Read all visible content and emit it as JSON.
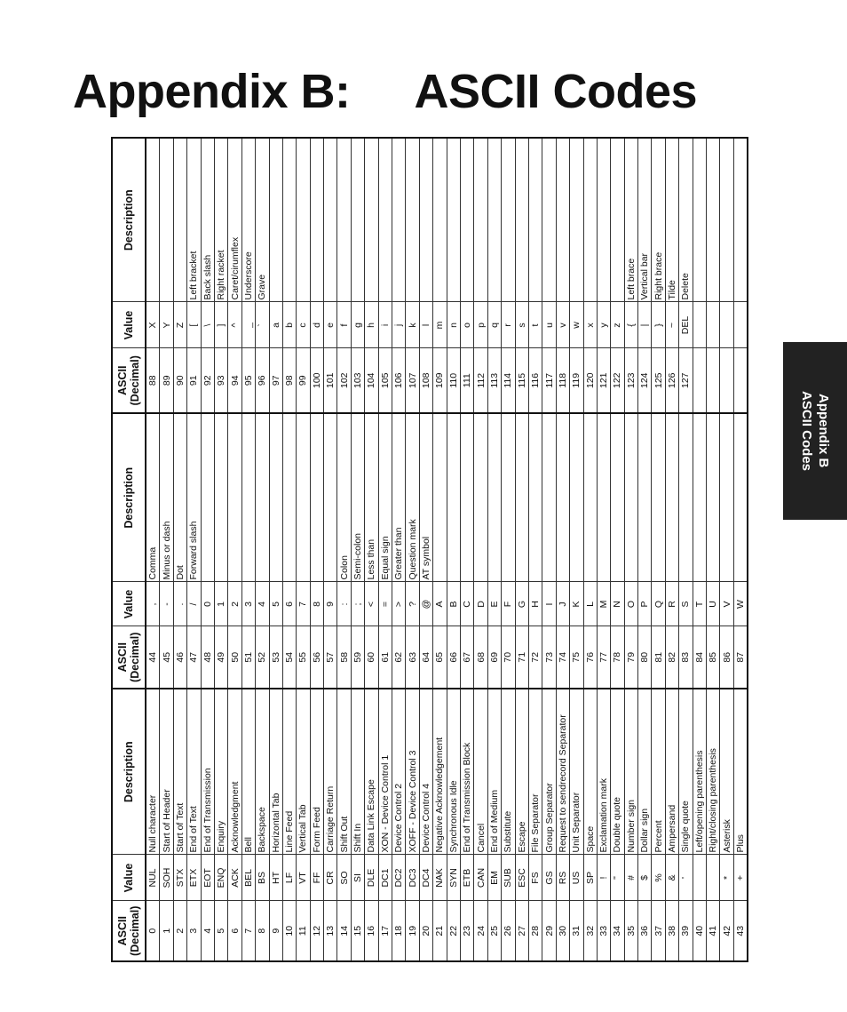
{
  "title": {
    "label": "Appendix B:",
    "text": "ASCII Codes"
  },
  "side_tab": {
    "line1": "Appendix B",
    "line2": "ASCII Codes"
  },
  "table": {
    "header": [
      "ASCII (Decimal)",
      "Value",
      "Description"
    ],
    "groups": [
      {
        "rows": [
          [
            0,
            "NUL",
            "Null character"
          ],
          [
            1,
            "SOH",
            "Start of Header"
          ],
          [
            2,
            "STX",
            "Start of Text"
          ],
          [
            3,
            "ETX",
            "End of Text"
          ],
          [
            4,
            "EOT",
            "End of Transmission"
          ],
          [
            5,
            "ENQ",
            "Enquiry"
          ],
          [
            6,
            "ACK",
            "Acknowledgment"
          ],
          [
            7,
            "BEL",
            "Bell"
          ],
          [
            8,
            "BS",
            "Backspace"
          ],
          [
            9,
            "HT",
            "Horizontal Tab"
          ],
          [
            10,
            "LF",
            "Line Feed"
          ],
          [
            11,
            "VT",
            "Vertical Tab"
          ],
          [
            12,
            "FF",
            "Form Feed"
          ],
          [
            13,
            "CR",
            "Carriage Return"
          ],
          [
            14,
            "SO",
            "Shift Out"
          ],
          [
            15,
            "SI",
            "Shift In"
          ],
          [
            16,
            "DLE",
            "Data Link Escape"
          ],
          [
            17,
            "DC1",
            "XON - Device Control 1"
          ],
          [
            18,
            "DC2",
            "Device Control 2"
          ],
          [
            19,
            "DC3",
            "XOFF - Device Control 3"
          ],
          [
            20,
            "DC4",
            "Device Control 4"
          ],
          [
            21,
            "NAK",
            "Negative Acknowledgement"
          ],
          [
            22,
            "SYN",
            "Synchronous Idle"
          ],
          [
            23,
            "ETB",
            "End of Transmission Block"
          ],
          [
            24,
            "CAN",
            "Cancel"
          ],
          [
            25,
            "EM",
            "End of Medium"
          ],
          [
            26,
            "SUB",
            "Substitute"
          ],
          [
            27,
            "ESC",
            "Escape"
          ],
          [
            28,
            "FS",
            "File Separator"
          ],
          [
            29,
            "GS",
            "Group Separator"
          ],
          [
            30,
            "RS",
            "Request to sendrecord Separator"
          ],
          [
            31,
            "US",
            "Unit Separator"
          ],
          [
            32,
            "SP",
            "Space"
          ],
          [
            33,
            "!",
            "Exclamation mark"
          ],
          [
            34,
            "\"",
            "Double quote"
          ],
          [
            35,
            "#",
            "Number sign"
          ],
          [
            36,
            "$",
            "Dollar sign"
          ],
          [
            37,
            "%",
            "Percent"
          ],
          [
            38,
            "&",
            "Ampersand"
          ],
          [
            39,
            "'",
            "Single quote"
          ],
          [
            40,
            null,
            "Left/opening parenthesis"
          ],
          [
            41,
            null,
            "Right/closing parenthesis"
          ],
          [
            42,
            "*",
            "Asterisk"
          ],
          [
            43,
            "+",
            "Plus"
          ]
        ]
      },
      {
        "rows": [
          [
            44,
            ",",
            "Comma"
          ],
          [
            45,
            "-",
            "Minus or dash"
          ],
          [
            46,
            ".",
            "Dot"
          ],
          [
            47,
            "/",
            "Forward slash"
          ],
          [
            48,
            "0",
            null
          ],
          [
            49,
            "1",
            null
          ],
          [
            50,
            "2",
            null
          ],
          [
            51,
            "3",
            null
          ],
          [
            52,
            "4",
            null
          ],
          [
            53,
            "5",
            null
          ],
          [
            54,
            "6",
            null
          ],
          [
            55,
            "7",
            null
          ],
          [
            56,
            "8",
            null
          ],
          [
            57,
            "9",
            null
          ],
          [
            58,
            ":",
            "Colon"
          ],
          [
            59,
            ";",
            "Semi-colon"
          ],
          [
            60,
            "<",
            "Less than"
          ],
          [
            61,
            "=",
            "Equal sign"
          ],
          [
            62,
            ">",
            "Greater than"
          ],
          [
            63,
            "?",
            "Question mark"
          ],
          [
            64,
            "@",
            "AT symbol"
          ],
          [
            65,
            "A",
            null
          ],
          [
            66,
            "B",
            null
          ],
          [
            67,
            "C",
            null
          ],
          [
            68,
            "D",
            null
          ],
          [
            69,
            "E",
            null
          ],
          [
            70,
            "F",
            null
          ],
          [
            71,
            "G",
            null
          ],
          [
            72,
            "H",
            null
          ],
          [
            73,
            "I",
            null
          ],
          [
            74,
            "J",
            null
          ],
          [
            75,
            "K",
            null
          ],
          [
            76,
            "L",
            null
          ],
          [
            77,
            "M",
            null
          ],
          [
            78,
            "N",
            null
          ],
          [
            79,
            "O",
            null
          ],
          [
            80,
            "P",
            null
          ],
          [
            81,
            "Q",
            null
          ],
          [
            82,
            "R",
            null
          ],
          [
            83,
            "S",
            null
          ],
          [
            84,
            "T",
            null
          ],
          [
            85,
            "U",
            null
          ],
          [
            86,
            "V",
            null
          ],
          [
            87,
            "W",
            null
          ]
        ]
      },
      {
        "rows": [
          [
            88,
            "X",
            null
          ],
          [
            89,
            "Y",
            null
          ],
          [
            90,
            "Z",
            null
          ],
          [
            91,
            "[",
            "Left bracket"
          ],
          [
            92,
            "\\",
            "Back slash"
          ],
          [
            93,
            "]",
            "Right racket"
          ],
          [
            94,
            "^",
            "Caret/cirumflex"
          ],
          [
            95,
            "_",
            "Underscore"
          ],
          [
            96,
            "`",
            "Grave"
          ],
          [
            97,
            "a",
            null
          ],
          [
            98,
            "b",
            null
          ],
          [
            99,
            "c",
            null
          ],
          [
            100,
            "d",
            null
          ],
          [
            101,
            "e",
            null
          ],
          [
            102,
            "f",
            null
          ],
          [
            103,
            "g",
            null
          ],
          [
            104,
            "h",
            null
          ],
          [
            105,
            "i",
            null
          ],
          [
            106,
            "j",
            null
          ],
          [
            107,
            "k",
            null
          ],
          [
            108,
            "l",
            null
          ],
          [
            109,
            "m",
            null
          ],
          [
            110,
            "n",
            null
          ],
          [
            111,
            "o",
            null
          ],
          [
            112,
            "p",
            null
          ],
          [
            113,
            "q",
            null
          ],
          [
            114,
            "r",
            null
          ],
          [
            115,
            "s",
            null
          ],
          [
            116,
            "t",
            null
          ],
          [
            117,
            "u",
            null
          ],
          [
            118,
            "v",
            null
          ],
          [
            119,
            "w",
            null
          ],
          [
            120,
            "x",
            null
          ],
          [
            121,
            "y",
            null
          ],
          [
            122,
            "z",
            null
          ],
          [
            123,
            "{",
            "Left brace"
          ],
          [
            124,
            "|",
            "Vertical bar"
          ],
          [
            125,
            "}",
            "Right brace"
          ],
          [
            126,
            "~",
            "Tilde"
          ],
          [
            127,
            "DEL",
            "Delete"
          ]
        ]
      }
    ]
  }
}
